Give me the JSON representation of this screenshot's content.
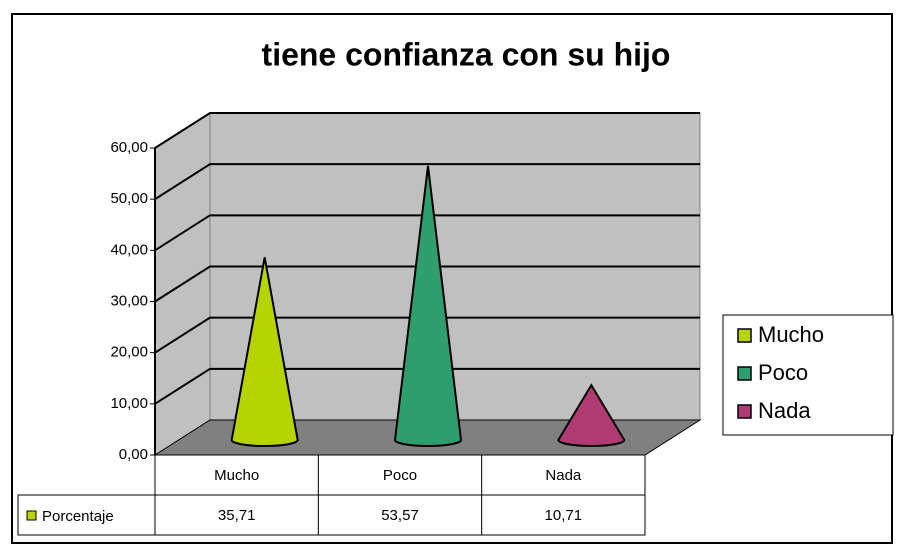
{
  "chart_data": {
    "type": "cone3d",
    "title": "tiene confianza con su hijo",
    "categories": [
      "Mucho",
      "Poco",
      "Nada"
    ],
    "series": [
      {
        "name": "Porcentaje",
        "values": [
          35.71,
          53.57,
          10.71
        ],
        "value_labels": [
          "35,71",
          "53,57",
          "10,71"
        ],
        "colors": [
          "#b6d400",
          "#2e9e6e",
          "#b03a72"
        ]
      }
    ],
    "ylim": [
      0,
      60
    ],
    "yticks": [
      {
        "value": 0,
        "label": "0,00"
      },
      {
        "value": 10,
        "label": "10,00"
      },
      {
        "value": 20,
        "label": "20,00"
      },
      {
        "value": 30,
        "label": "30,00"
      },
      {
        "value": 40,
        "label": "40,00"
      },
      {
        "value": 50,
        "label": "50,00"
      },
      {
        "value": 60,
        "label": "60,00"
      }
    ],
    "grid": true,
    "legend": "right"
  }
}
